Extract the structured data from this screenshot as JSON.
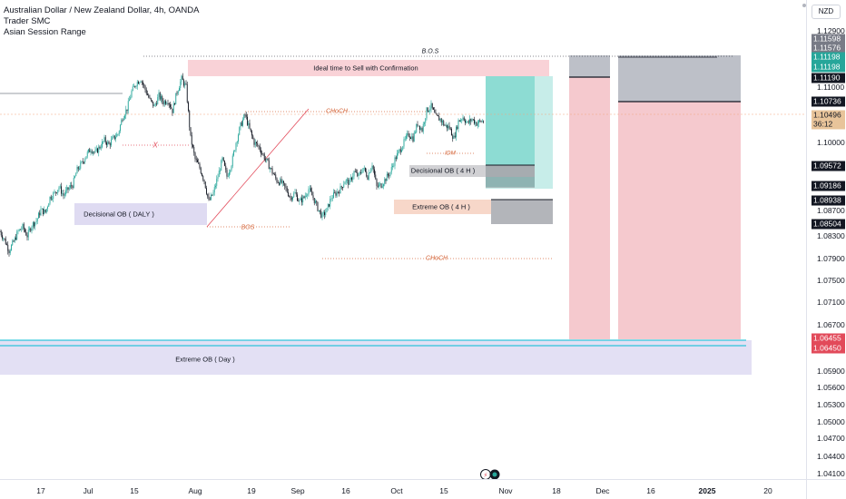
{
  "header": {
    "title": "Australian Dollar / New Zealand Dollar, 4h, OANDA",
    "indicators": [
      "Trader SMC",
      "Asian Session Range"
    ],
    "currency": "NZD"
  },
  "colors": {
    "up": "#26a69a",
    "down": "#131722",
    "bos_line": "#131722",
    "choch": "#d66a3f",
    "sell_zone": "#f7c7cd",
    "ob_blue": "#d9d5f0",
    "ob_orange": "#f6d3c3",
    "take_profit": "#83d8cf",
    "stop_loss": "#f3bfc5",
    "gray_box": "#b2b5be"
  },
  "annotations": {
    "bos_top": "B.O.S",
    "sell_zone": "Ideal time to Sell with Confirmation",
    "choch_upper": "CHoCH",
    "x_mark": "X",
    "decisional_daily": "Decisional OB ( DALY )",
    "bos_lower": "BOS",
    "choch_lower": "CHoCH",
    "idm": "IDM",
    "decisional_4h": "Decisional OB ( 4 H )",
    "extreme_4h": "Extreme OB ( 4 H )",
    "extreme_day": "Extreme OB ( Day )"
  },
  "price_axis": {
    "ticks": [
      "1.12900",
      "1.11000",
      "1.10000",
      "1.08700",
      "1.08300",
      "1.07900",
      "1.07500",
      "1.07100",
      "1.06700",
      "1.05900",
      "1.05600",
      "1.05300",
      "1.05000",
      "1.04700",
      "1.04400",
      "1.04100"
    ],
    "highlighted": [
      {
        "text": "1.11598",
        "bg": "#787b86"
      },
      {
        "text": "1.11576",
        "bg": "#787b86"
      },
      {
        "text": "1.11198",
        "bg": "#26a69a"
      },
      {
        "text": "1.11198",
        "bg": "#26a69a"
      },
      {
        "text": "1.11190",
        "bg": "#131722"
      },
      {
        "text": "1.10736",
        "bg": "#131722"
      },
      {
        "text": "1.10496",
        "bg": "#e8c49a",
        "dark": true
      },
      {
        "text": "36:12",
        "bg": "#e8c49a",
        "dark": true
      },
      {
        "text": "1.09572",
        "bg": "#131722"
      },
      {
        "text": "1.09186",
        "bg": "#131722"
      },
      {
        "text": "1.08938",
        "bg": "#131722"
      },
      {
        "text": "1.08504",
        "bg": "#131722"
      },
      {
        "text": "1.06455",
        "bg": "#e24a5a"
      },
      {
        "text": "1.06450",
        "bg": "#e24a5a"
      }
    ]
  },
  "time_axis": {
    "labels": [
      {
        "text": "17",
        "bold": false
      },
      {
        "text": "Jul",
        "bold": false
      },
      {
        "text": "15",
        "bold": false
      },
      {
        "text": "Aug",
        "bold": false
      },
      {
        "text": "19",
        "bold": false
      },
      {
        "text": "Sep",
        "bold": false
      },
      {
        "text": "16",
        "bold": false
      },
      {
        "text": "Oct",
        "bold": false
      },
      {
        "text": "15",
        "bold": false
      },
      {
        "text": "Nov",
        "bold": false
      },
      {
        "text": "18",
        "bold": false
      },
      {
        "text": "Dec",
        "bold": false
      },
      {
        "text": "16",
        "bold": false
      },
      {
        "text": "2025",
        "bold": true
      },
      {
        "text": "20",
        "bold": false
      }
    ]
  },
  "chart_data": {
    "type": "candlestick",
    "symbol": "AUDNZD",
    "timeframe": "4h",
    "last_price": 1.10496,
    "countdown": "36:12",
    "y_range": [
      1.041,
      1.131
    ],
    "key_levels": [
      1.11598,
      1.11576,
      1.11198,
      1.1119,
      1.10736,
      1.10496,
      1.09572,
      1.09186,
      1.08938,
      1.08504,
      1.06455,
      1.0645
    ],
    "series_path": [
      [
        0,
        1.079
      ],
      [
        5,
        1.077
      ],
      [
        10,
        1.0745
      ],
      [
        15,
        1.0765
      ],
      [
        20,
        1.079
      ],
      [
        25,
        1.08
      ],
      [
        30,
        1.078
      ],
      [
        35,
        1.0805
      ],
      [
        40,
        1.0815
      ],
      [
        45,
        1.084
      ],
      [
        50,
        1.0835
      ],
      [
        55,
        1.087
      ],
      [
        60,
        1.088
      ],
      [
        65,
        1.0895
      ],
      [
        70,
        1.0875
      ],
      [
        75,
        1.089
      ],
      [
        80,
        1.09
      ],
      [
        85,
        1.0935
      ],
      [
        90,
        1.095
      ],
      [
        95,
        1.097
      ],
      [
        100,
        1.0985
      ],
      [
        105,
        1.0975
      ],
      [
        110,
        1.099
      ],
      [
        115,
        1.1005
      ],
      [
        120,
        1.0995
      ],
      [
        125,
        1.101
      ],
      [
        130,
        1.102
      ],
      [
        135,
        1.106
      ],
      [
        140,
        1.108
      ],
      [
        145,
        1.112
      ],
      [
        150,
        1.114
      ],
      [
        155,
        1.115
      ],
      [
        160,
        1.1125
      ],
      [
        165,
        1.11
      ],
      [
        170,
        1.1085
      ],
      [
        175,
        1.111
      ],
      [
        180,
        1.1095
      ],
      [
        185,
        1.11
      ],
      [
        190,
        1.1075
      ],
      [
        195,
        1.112
      ],
      [
        200,
        1.115
      ],
      [
        205,
        1.113
      ],
      [
        210,
        1.101
      ],
      [
        215,
        1.096
      ],
      [
        220,
        1.094
      ],
      [
        225,
        1.091
      ],
      [
        230,
        1.086
      ],
      [
        235,
        1.088
      ],
      [
        240,
        1.092
      ],
      [
        245,
        1.096
      ],
      [
        250,
        1.092
      ],
      [
        255,
        1.095
      ],
      [
        260,
        1.1
      ],
      [
        265,
        1.104
      ],
      [
        270,
        1.1065
      ],
      [
        275,
        1.103
      ],
      [
        280,
        1.1
      ],
      [
        285,
        1.099
      ],
      [
        290,
        1.097
      ],
      [
        295,
        1.095
      ],
      [
        300,
        1.093
      ],
      [
        305,
        1.091
      ],
      [
        310,
        1.0905
      ],
      [
        315,
        1.089
      ],
      [
        320,
        1.087
      ],
      [
        325,
        1.088
      ],
      [
        330,
        1.086
      ],
      [
        335,
        1.087
      ],
      [
        340,
        1.089
      ],
      [
        345,
        1.087
      ],
      [
        350,
        1.0845
      ],
      [
        355,
        1.0825
      ],
      [
        360,
        1.084
      ],
      [
        365,
        1.087
      ],
      [
        370,
        1.088
      ],
      [
        375,
        1.089
      ],
      [
        380,
        1.091
      ],
      [
        385,
        1.0905
      ],
      [
        390,
        1.093
      ],
      [
        395,
        1.092
      ],
      [
        400,
        1.094
      ],
      [
        405,
        1.092
      ],
      [
        410,
        1.095
      ],
      [
        415,
        1.0895
      ],
      [
        420,
        1.09
      ],
      [
        425,
        1.0915
      ],
      [
        430,
        1.093
      ],
      [
        435,
        1.096
      ],
      [
        440,
        1.098
      ],
      [
        445,
        1.1
      ],
      [
        450,
        1.102
      ],
      [
        455,
        1.101
      ],
      [
        460,
        1.1045
      ],
      [
        465,
        1.103
      ],
      [
        470,
        1.1075
      ],
      [
        475,
        1.1085
      ],
      [
        480,
        1.106
      ],
      [
        485,
        1.1055
      ],
      [
        490,
        1.104
      ],
      [
        495,
        1.1035
      ],
      [
        500,
        1.101
      ],
      [
        505,
        1.105
      ],
      [
        510,
        1.106
      ],
      [
        515,
        1.1045
      ],
      [
        520,
        1.1055
      ],
      [
        525,
        1.1045
      ],
      [
        530,
        1.105
      ],
      [
        533,
        1.10496
      ]
    ]
  }
}
